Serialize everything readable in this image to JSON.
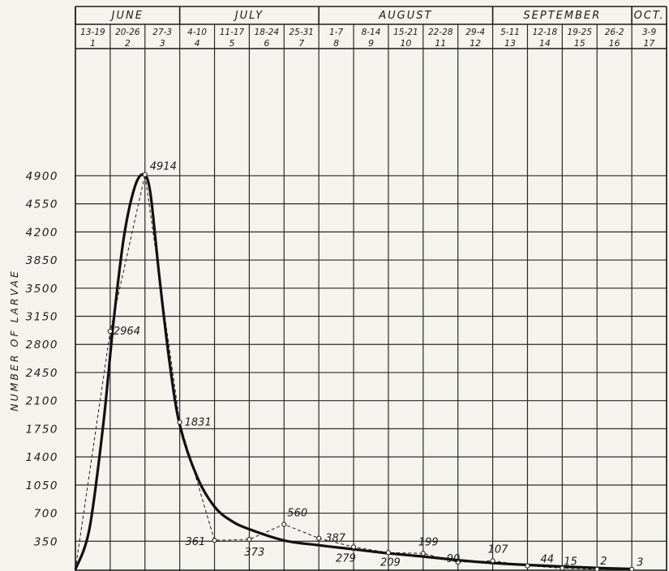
{
  "chart_data": {
    "type": "line",
    "ylabel": "NUMBER OF LARVAE",
    "y_ticks": [
      350,
      700,
      1050,
      1400,
      1750,
      2100,
      2450,
      2800,
      3150,
      3500,
      3850,
      4200,
      4550,
      4900
    ],
    "ylim": [
      0,
      5250
    ],
    "months": [
      {
        "label": "JUNE",
        "start_week": 1,
        "end_week": 3
      },
      {
        "label": "JULY",
        "start_week": 4,
        "end_week": 7
      },
      {
        "label": "AUGUST",
        "start_week": 8,
        "end_week": 12
      },
      {
        "label": "SEPTEMBER",
        "start_week": 13,
        "end_week": 16
      },
      {
        "label": "OCT.",
        "start_week": 17,
        "end_week": 17
      }
    ],
    "weeks": [
      {
        "dates": "13-19",
        "number": "1"
      },
      {
        "dates": "20-26",
        "number": "2"
      },
      {
        "dates": "27-3",
        "number": "3"
      },
      {
        "dates": "4-10",
        "number": "4"
      },
      {
        "dates": "11-17",
        "number": "5"
      },
      {
        "dates": "18-24",
        "number": "6"
      },
      {
        "dates": "25-31",
        "number": "7"
      },
      {
        "dates": "1-7",
        "number": "8"
      },
      {
        "dates": "8-14",
        "number": "9"
      },
      {
        "dates": "15-21",
        "number": "10"
      },
      {
        "dates": "22-28",
        "number": "11"
      },
      {
        "dates": "29-4",
        "number": "12"
      },
      {
        "dates": "5-11",
        "number": "13"
      },
      {
        "dates": "12-18",
        "number": "14"
      },
      {
        "dates": "19-25",
        "number": "15"
      },
      {
        "dates": "26-2",
        "number": "16"
      },
      {
        "dates": "3-9",
        "number": "17"
      }
    ],
    "series": [
      {
        "style": "dashed",
        "points": [
          {
            "x": 0,
            "y": 0,
            "label": ""
          },
          {
            "x": 1,
            "y": 2964,
            "label": "2964"
          },
          {
            "x": 2,
            "y": 4914,
            "label": "4914"
          },
          {
            "x": 3,
            "y": 1831,
            "label": "1831"
          },
          {
            "x": 4,
            "y": 361,
            "label": "361"
          },
          {
            "x": 5,
            "y": 373,
            "label": "373"
          },
          {
            "x": 6,
            "y": 560,
            "label": "560"
          },
          {
            "x": 7,
            "y": 387,
            "label": "387"
          },
          {
            "x": 8,
            "y": 279,
            "label": "279"
          },
          {
            "x": 9,
            "y": 209,
            "label": "209"
          },
          {
            "x": 10,
            "y": 199,
            "label": "199"
          },
          {
            "x": 11,
            "y": 90,
            "label": "90"
          },
          {
            "x": 12,
            "y": 107,
            "label": "107"
          },
          {
            "x": 13,
            "y": 44,
            "label": "44"
          },
          {
            "x": 14,
            "y": 15,
            "label": "15"
          },
          {
            "x": 15,
            "y": 2,
            "label": "2"
          },
          {
            "x": 16,
            "y": 3,
            "label": "3"
          }
        ]
      },
      {
        "style": "solid-smoothed",
        "points": [
          {
            "x": 0,
            "y": 0
          },
          {
            "x": 0.4,
            "y": 500
          },
          {
            "x": 0.8,
            "y": 1800
          },
          {
            "x": 1.1,
            "y": 3100
          },
          {
            "x": 1.4,
            "y": 4150
          },
          {
            "x": 1.7,
            "y": 4750
          },
          {
            "x": 1.95,
            "y": 4914
          },
          {
            "x": 2.15,
            "y": 4700
          },
          {
            "x": 2.4,
            "y": 3700
          },
          {
            "x": 2.7,
            "y": 2600
          },
          {
            "x": 3.0,
            "y": 1800
          },
          {
            "x": 3.5,
            "y": 1150
          },
          {
            "x": 4.0,
            "y": 780
          },
          {
            "x": 4.5,
            "y": 600
          },
          {
            "x": 5.0,
            "y": 500
          },
          {
            "x": 6.0,
            "y": 360
          },
          {
            "x": 7.0,
            "y": 300
          },
          {
            "x": 8.0,
            "y": 250
          },
          {
            "x": 9.0,
            "y": 200
          },
          {
            "x": 10.0,
            "y": 160
          },
          {
            "x": 11.0,
            "y": 115
          },
          {
            "x": 12.0,
            "y": 80
          },
          {
            "x": 13.0,
            "y": 55
          },
          {
            "x": 14.0,
            "y": 35
          },
          {
            "x": 15.0,
            "y": 18
          },
          {
            "x": 16.0,
            "y": 5
          }
        ]
      }
    ],
    "grid": true,
    "legend": "none"
  }
}
